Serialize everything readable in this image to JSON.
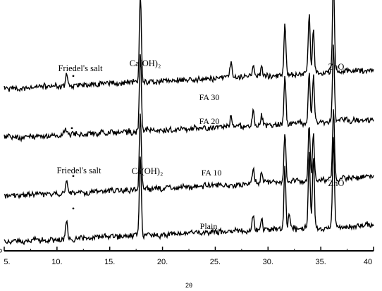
{
  "chart_data": {
    "type": "line",
    "title": "",
    "xlabel": "2θ",
    "ylabel": "",
    "xlim": [
      5,
      40
    ],
    "xticks": [
      5,
      10,
      15,
      20,
      25,
      30,
      35,
      40
    ],
    "xtick_labels": [
      "5.",
      "10.",
      "15.",
      "20.",
      "25.",
      "30.",
      "35.",
      "40"
    ],
    "y_zero_label": "0",
    "grid": false,
    "series": [
      {
        "name": "FA 30",
        "peaks": [
          [
            10.9,
            0.1
          ],
          [
            17.9,
            0.7
          ],
          [
            26.5,
            0.12
          ],
          [
            28.6,
            0.09
          ],
          [
            29.4,
            0.07
          ],
          [
            31.6,
            0.4
          ],
          [
            33.9,
            0.46
          ],
          [
            34.3,
            0.34
          ],
          [
            36.2,
            0.75
          ]
        ]
      },
      {
        "name": "FA 20",
        "peaks": [
          [
            10.8,
            0.06
          ],
          [
            17.9,
            0.62
          ],
          [
            26.5,
            0.08
          ],
          [
            28.6,
            0.12
          ],
          [
            29.4,
            0.08
          ],
          [
            31.6,
            0.4
          ],
          [
            33.9,
            0.4
          ],
          [
            34.3,
            0.37
          ],
          [
            36.2,
            0.62
          ]
        ]
      },
      {
        "name": "FA 10",
        "peaks": [
          [
            10.9,
            0.1
          ],
          [
            17.9,
            0.6
          ],
          [
            28.6,
            0.12
          ],
          [
            29.4,
            0.09
          ],
          [
            31.6,
            0.4
          ],
          [
            33.9,
            0.45
          ],
          [
            34.3,
            0.37
          ],
          [
            36.2,
            0.55
          ]
        ]
      },
      {
        "name": "Plain",
        "peaks": [
          [
            10.9,
            0.14
          ],
          [
            17.9,
            0.65
          ],
          [
            28.6,
            0.12
          ],
          [
            29.4,
            0.1
          ],
          [
            31.6,
            0.5
          ],
          [
            32.0,
            0.12
          ],
          [
            33.9,
            0.6
          ],
          [
            34.3,
            0.55
          ],
          [
            36.2,
            0.7
          ]
        ]
      }
    ],
    "annotations": [
      {
        "text": "Friedel's salt",
        "series": 0
      },
      {
        "text": "Ca(OH)₂",
        "series": 0
      },
      {
        "text": "ZnO",
        "series": 0
      },
      {
        "text": "Friedel's salt",
        "series": 2
      },
      {
        "text": "Ca(OH)₂",
        "series": 2
      },
      {
        "text": "ZnO",
        "series": 2
      }
    ],
    "markers": [
      {
        "symbol": "•",
        "x": 10.9,
        "series": 0
      },
      {
        "symbol": "•",
        "x": 10.8,
        "series": 1
      },
      {
        "symbol": "•",
        "x": 10.9,
        "series": 2
      },
      {
        "symbol": "•",
        "x": 10.9,
        "series": 3
      }
    ]
  }
}
